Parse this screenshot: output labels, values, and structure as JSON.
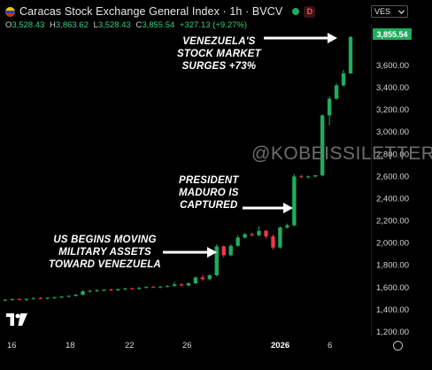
{
  "header": {
    "title": "Caracas Stock Exchange General Index · 1h · BVCV",
    "badge": "D",
    "ohlc": [
      {
        "k": "O",
        "v": "3,528.43"
      },
      {
        "k": "H",
        "v": "3,863.62"
      },
      {
        "k": "L",
        "v": "3,528.43"
      },
      {
        "k": "C",
        "v": "3,855.54"
      }
    ],
    "change": "+327.13 (+9.27%)"
  },
  "currency": {
    "label": "VES",
    "chevron": "chevron-down-icon"
  },
  "last_price_label": "3,855.54",
  "watermark": "@KOBEISSILETTER",
  "annotations": {
    "a1": [
      "VENEZUELA'S",
      "STOCK MARKET",
      "SURGES +73%"
    ],
    "a2": [
      "PRESIDENT",
      "MADURO IS",
      "CAPTURED"
    ],
    "a3": [
      "US BEGINS MOVING",
      "MILITARY ASSETS",
      "TOWARD VENEZUELA"
    ]
  },
  "colors": {
    "up": "#22ab5d",
    "down": "#f23645",
    "bg": "#000000",
    "text": "#d6d6d6"
  },
  "chart_data": {
    "type": "candlestick",
    "interval": "1h",
    "y_ticks": [
      "3,600.00",
      "3,400.00",
      "3,200.00",
      "3,000.00",
      "2,800.00",
      "2,600.00",
      "2,400.00",
      "2,200.00",
      "2,000.00",
      "1,800.00",
      "1,600.00",
      "1,400.00",
      "1,200.00"
    ],
    "y_tick_values": [
      3600,
      3400,
      3200,
      3000,
      2800,
      2600,
      2400,
      2200,
      2000,
      1800,
      1600,
      1400,
      1200
    ],
    "x_ticks": [
      "16",
      "18",
      "22",
      "26",
      "2026",
      "6"
    ],
    "x_tick_bold": [
      false,
      false,
      false,
      false,
      true,
      false
    ],
    "ylim": [
      1120,
      3950
    ],
    "candles": [
      {
        "o": 1485,
        "h": 1495,
        "l": 1475,
        "c": 1490
      },
      {
        "o": 1490,
        "h": 1500,
        "l": 1482,
        "c": 1495
      },
      {
        "o": 1495,
        "h": 1505,
        "l": 1485,
        "c": 1488
      },
      {
        "o": 1488,
        "h": 1500,
        "l": 1480,
        "c": 1497
      },
      {
        "o": 1497,
        "h": 1510,
        "l": 1490,
        "c": 1505
      },
      {
        "o": 1505,
        "h": 1515,
        "l": 1495,
        "c": 1500
      },
      {
        "o": 1500,
        "h": 1512,
        "l": 1492,
        "c": 1508
      },
      {
        "o": 1508,
        "h": 1518,
        "l": 1498,
        "c": 1512
      },
      {
        "o": 1512,
        "h": 1522,
        "l": 1505,
        "c": 1518
      },
      {
        "o": 1518,
        "h": 1530,
        "l": 1510,
        "c": 1525
      },
      {
        "o": 1525,
        "h": 1540,
        "l": 1518,
        "c": 1535
      },
      {
        "o": 1535,
        "h": 1575,
        "l": 1528,
        "c": 1565
      },
      {
        "o": 1565,
        "h": 1578,
        "l": 1555,
        "c": 1570
      },
      {
        "o": 1570,
        "h": 1582,
        "l": 1560,
        "c": 1575
      },
      {
        "o": 1575,
        "h": 1585,
        "l": 1565,
        "c": 1580
      },
      {
        "o": 1580,
        "h": 1590,
        "l": 1570,
        "c": 1575
      },
      {
        "o": 1575,
        "h": 1588,
        "l": 1568,
        "c": 1585
      },
      {
        "o": 1585,
        "h": 1598,
        "l": 1575,
        "c": 1592
      },
      {
        "o": 1592,
        "h": 1600,
        "l": 1580,
        "c": 1588
      },
      {
        "o": 1588,
        "h": 1602,
        "l": 1582,
        "c": 1598
      },
      {
        "o": 1598,
        "h": 1610,
        "l": 1590,
        "c": 1605
      },
      {
        "o": 1605,
        "h": 1615,
        "l": 1596,
        "c": 1600
      },
      {
        "o": 1600,
        "h": 1612,
        "l": 1592,
        "c": 1608
      },
      {
        "o": 1608,
        "h": 1620,
        "l": 1600,
        "c": 1615
      },
      {
        "o": 1615,
        "h": 1650,
        "l": 1605,
        "c": 1628
      },
      {
        "o": 1628,
        "h": 1640,
        "l": 1612,
        "c": 1618
      },
      {
        "o": 1618,
        "h": 1645,
        "l": 1610,
        "c": 1638
      },
      {
        "o": 1638,
        "h": 1700,
        "l": 1630,
        "c": 1690
      },
      {
        "o": 1690,
        "h": 1715,
        "l": 1660,
        "c": 1675
      },
      {
        "o": 1675,
        "h": 1720,
        "l": 1665,
        "c": 1710
      },
      {
        "o": 1710,
        "h": 1990,
        "l": 1700,
        "c": 1970
      },
      {
        "o": 1970,
        "h": 1980,
        "l": 1870,
        "c": 1890
      },
      {
        "o": 1890,
        "h": 1990,
        "l": 1880,
        "c": 1975
      },
      {
        "o": 1975,
        "h": 2070,
        "l": 1965,
        "c": 2050
      },
      {
        "o": 2050,
        "h": 2090,
        "l": 2040,
        "c": 2080
      },
      {
        "o": 2080,
        "h": 2095,
        "l": 2060,
        "c": 2070
      },
      {
        "o": 2070,
        "h": 2150,
        "l": 2060,
        "c": 2110
      },
      {
        "o": 2110,
        "h": 2120,
        "l": 2040,
        "c": 2060
      },
      {
        "o": 2060,
        "h": 2080,
        "l": 1940,
        "c": 1960
      },
      {
        "o": 1960,
        "h": 2150,
        "l": 1950,
        "c": 2140
      },
      {
        "o": 2140,
        "h": 2175,
        "l": 2130,
        "c": 2160
      },
      {
        "o": 2160,
        "h": 2620,
        "l": 2150,
        "c": 2600
      },
      {
        "o": 2600,
        "h": 2615,
        "l": 2585,
        "c": 2595
      },
      {
        "o": 2595,
        "h": 2610,
        "l": 2580,
        "c": 2600
      },
      {
        "o": 2600,
        "h": 2615,
        "l": 2590,
        "c": 2610
      },
      {
        "o": 2610,
        "h": 3160,
        "l": 2600,
        "c": 3150
      },
      {
        "o": 3150,
        "h": 3320,
        "l": 3060,
        "c": 3300
      },
      {
        "o": 3300,
        "h": 3440,
        "l": 3290,
        "c": 3420
      },
      {
        "o": 3420,
        "h": 3560,
        "l": 3410,
        "c": 3528
      },
      {
        "o": 3528,
        "h": 3864,
        "l": 3528,
        "c": 3856
      }
    ]
  }
}
